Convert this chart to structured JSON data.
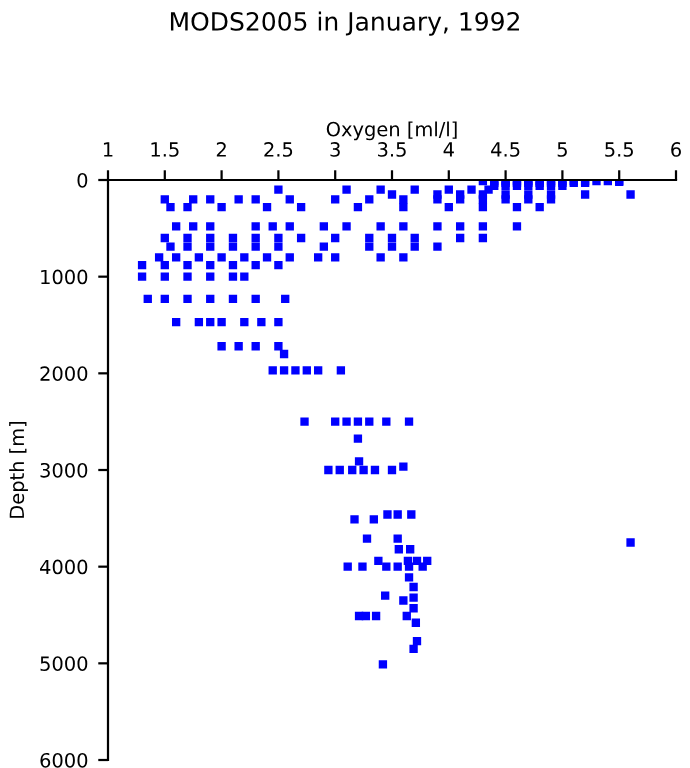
{
  "chart_data": {
    "type": "scatter",
    "title": "MODS2005 in January, 1992",
    "xlabel": "Oxygen [ml/l]",
    "ylabel": "Depth [m]",
    "xlim": [
      1,
      6
    ],
    "xticks": [
      1,
      1.5,
      2,
      2.5,
      3,
      3.5,
      4,
      4.5,
      5,
      5.5,
      6
    ],
    "ylim": [
      6000,
      0
    ],
    "yticks": [
      0,
      1000,
      2000,
      3000,
      4000,
      5000,
      6000
    ],
    "marker": "square",
    "grid": false,
    "series": [
      {
        "color": "#0000ff",
        "x": [
          4.3,
          4.4,
          4.5,
          4.6,
          4.7,
          4.8,
          4.9,
          5.0,
          5.1,
          5.2,
          5.3,
          5.4,
          5.5,
          5.5,
          4.4,
          4.5,
          4.6,
          4.7,
          4.8,
          4.9,
          5.0,
          5.1,
          5.2,
          4.4,
          4.5,
          4.6,
          4.7,
          4.8,
          4.9,
          5.0,
          2.5,
          3.1,
          3.4,
          3.7,
          4.0,
          4.2,
          4.35,
          3.5,
          3.9,
          4.1,
          4.3,
          4.5,
          4.7,
          4.9,
          5.2,
          5.6,
          1.5,
          1.75,
          1.9,
          2.15,
          2.3,
          2.6,
          3.0,
          3.3,
          3.6,
          3.9,
          4.1,
          4.3,
          4.5,
          4.7,
          4.9,
          1.55,
          1.7,
          2.0,
          2.4,
          2.7,
          3.2,
          3.6,
          4.0,
          4.3,
          4.6,
          4.8,
          1.6,
          1.75,
          1.9,
          2.3,
          2.45,
          2.6,
          2.9,
          3.1,
          3.4,
          3.6,
          3.9,
          4.1,
          4.3,
          4.6,
          1.5,
          1.7,
          1.9,
          2.1,
          2.3,
          2.5,
          2.7,
          3.0,
          3.3,
          3.5,
          3.7,
          4.1,
          4.3,
          1.55,
          1.7,
          1.9,
          2.1,
          2.3,
          2.5,
          2.9,
          3.3,
          3.5,
          3.7,
          3.9,
          1.45,
          1.6,
          1.8,
          2.0,
          2.2,
          2.4,
          2.6,
          2.85,
          3.0,
          3.4,
          3.6,
          1.3,
          1.5,
          1.7,
          1.9,
          2.1,
          2.3,
          2.5,
          1.3,
          1.5,
          1.7,
          1.9,
          2.1,
          2.2,
          1.35,
          1.5,
          1.7,
          1.9,
          2.1,
          2.3,
          2.56,
          1.6,
          1.8,
          1.9,
          2.0,
          2.2,
          2.35,
          2.5,
          2.0,
          2.15,
          2.3,
          2.5,
          2.55,
          2.45,
          2.55,
          2.65,
          2.75,
          2.85,
          3.05,
          2.73,
          3.0,
          3.1,
          3.2,
          3.3,
          3.45,
          3.65,
          3.2,
          3.21,
          3.6,
          2.94,
          3.04,
          3.15,
          3.25,
          3.35,
          3.5,
          3.46,
          3.55,
          3.67,
          3.17,
          3.34,
          3.28,
          3.55,
          3.56,
          3.66,
          3.38,
          3.64,
          3.72,
          3.81,
          3.11,
          3.24,
          3.45,
          3.55,
          3.65,
          3.77,
          3.65,
          3.69,
          3.44,
          3.69,
          3.6,
          3.69,
          3.21,
          3.27,
          3.36,
          3.63,
          3.71,
          3.72,
          3.69,
          3.42,
          5.6
        ],
        "values": [
          10,
          10,
          10,
          10,
          10,
          10,
          10,
          10,
          10,
          10,
          10,
          10,
          10,
          20,
          30,
          30,
          30,
          30,
          30,
          30,
          30,
          30,
          30,
          60,
          60,
          60,
          60,
          60,
          60,
          60,
          100,
          100,
          100,
          100,
          100,
          100,
          100,
          150,
          150,
          150,
          150,
          150,
          150,
          150,
          150,
          150,
          200,
          200,
          200,
          200,
          200,
          200,
          200,
          200,
          200,
          200,
          200,
          200,
          200,
          200,
          200,
          280,
          280,
          280,
          280,
          280,
          280,
          280,
          280,
          280,
          280,
          280,
          480,
          480,
          480,
          480,
          480,
          480,
          480,
          480,
          480,
          480,
          480,
          480,
          480,
          480,
          600,
          600,
          600,
          600,
          600,
          600,
          600,
          600,
          600,
          600,
          600,
          600,
          600,
          690,
          690,
          690,
          690,
          690,
          690,
          690,
          690,
          690,
          690,
          690,
          800,
          800,
          800,
          800,
          800,
          800,
          800,
          800,
          800,
          800,
          800,
          880,
          880,
          880,
          880,
          880,
          880,
          880,
          1000,
          1000,
          1000,
          1000,
          1000,
          1000,
          1230,
          1230,
          1230,
          1230,
          1230,
          1230,
          1230,
          1470,
          1470,
          1470,
          1470,
          1470,
          1470,
          1470,
          1720,
          1720,
          1720,
          1720,
          1800,
          1970,
          1970,
          1970,
          1970,
          1970,
          1970,
          2500,
          2500,
          2500,
          2500,
          2500,
          2500,
          2500,
          2675,
          2910,
          2965,
          3000,
          3000,
          3000,
          3000,
          3000,
          3000,
          3460,
          3460,
          3460,
          3510,
          3510,
          3710,
          3710,
          3820,
          3820,
          3940,
          3940,
          3940,
          3940,
          4000,
          4000,
          4000,
          4000,
          4000,
          4000,
          4110,
          4210,
          4300,
          4320,
          4350,
          4430,
          4510,
          4510,
          4510,
          4510,
          4580,
          4770,
          4850,
          5010,
          3750
        ]
      }
    ]
  }
}
